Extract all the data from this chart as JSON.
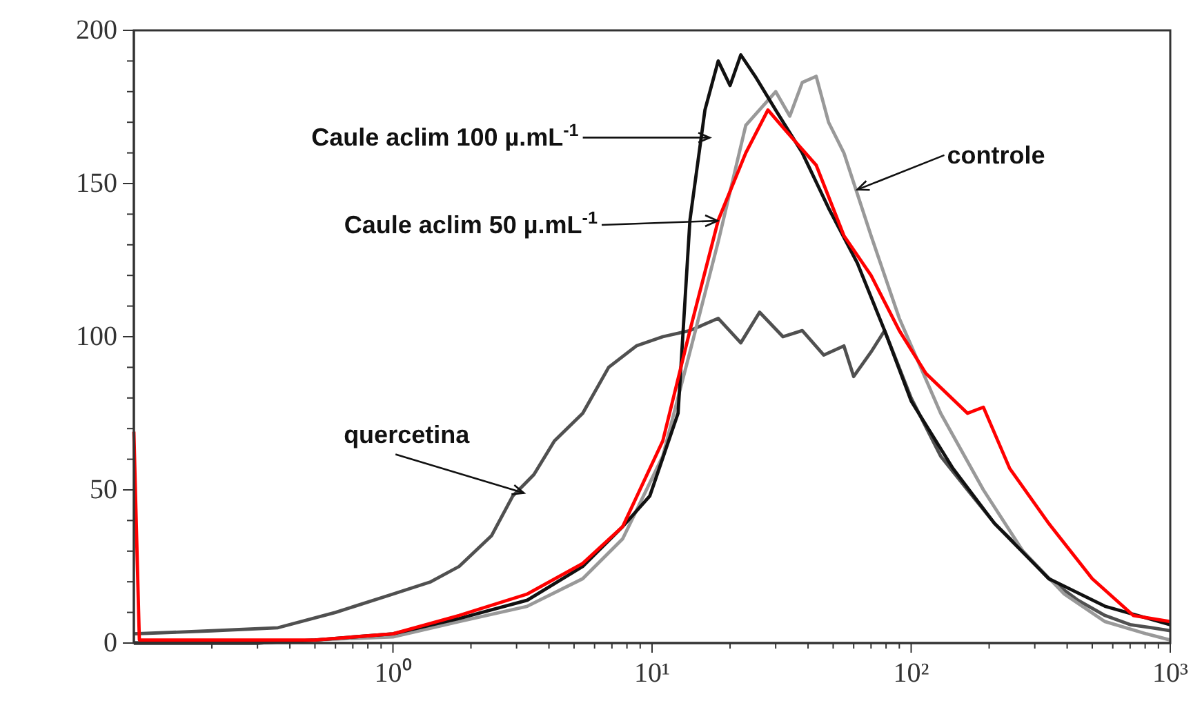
{
  "chart_data": {
    "type": "line",
    "log": "x",
    "xlim": [
      0.1,
      1000
    ],
    "xticks": [
      {
        "value": 0.2,
        "label": null
      },
      {
        "value": 0.3,
        "label": null
      },
      {
        "value": 0.4,
        "label": null
      },
      {
        "value": 0.5,
        "label": null
      },
      {
        "value": 0.6,
        "label": null
      },
      {
        "value": 0.7,
        "label": null
      },
      {
        "value": 0.8,
        "label": null
      },
      {
        "value": 0.9,
        "label": null
      },
      {
        "value": 1,
        "label": "10⁰"
      },
      {
        "value": 2,
        "label": null
      },
      {
        "value": 3,
        "label": null
      },
      {
        "value": 4,
        "label": null
      },
      {
        "value": 5,
        "label": null
      },
      {
        "value": 6,
        "label": null
      },
      {
        "value": 7,
        "label": null
      },
      {
        "value": 8,
        "label": null
      },
      {
        "value": 9,
        "label": null
      },
      {
        "value": 10,
        "label": "10¹"
      },
      {
        "value": 20,
        "label": null
      },
      {
        "value": 30,
        "label": null
      },
      {
        "value": 40,
        "label": null
      },
      {
        "value": 50,
        "label": null
      },
      {
        "value": 60,
        "label": null
      },
      {
        "value": 70,
        "label": null
      },
      {
        "value": 80,
        "label": null
      },
      {
        "value": 90,
        "label": null
      },
      {
        "value": 100,
        "label": "10²"
      },
      {
        "value": 200,
        "label": null
      },
      {
        "value": 300,
        "label": null
      },
      {
        "value": 400,
        "label": null
      },
      {
        "value": 500,
        "label": null
      },
      {
        "value": 600,
        "label": null
      },
      {
        "value": 700,
        "label": null
      },
      {
        "value": 800,
        "label": null
      },
      {
        "value": 900,
        "label": null
      },
      {
        "value": 1000,
        "label": "10³"
      }
    ],
    "ylim": [
      0,
      200
    ],
    "yticks": [
      0,
      {
        "value": 10,
        "label": null
      },
      {
        "value": 20,
        "label": null
      },
      {
        "value": 30,
        "label": null
      },
      {
        "value": 40,
        "label": null
      },
      50,
      {
        "value": 60,
        "label": null
      },
      {
        "value": 70,
        "label": null
      },
      {
        "value": 80,
        "label": null
      },
      {
        "value": 90,
        "label": null
      },
      100,
      {
        "value": 110,
        "label": null
      },
      {
        "value": 120,
        "label": null
      },
      {
        "value": 130,
        "label": null
      },
      {
        "value": 140,
        "label": null
      },
      150,
      {
        "value": 160,
        "label": null
      },
      {
        "value": 170,
        "label": null
      },
      {
        "value": 180,
        "label": null
      },
      {
        "value": 190,
        "label": null
      },
      200
    ],
    "grid": false,
    "line_style": "solid",
    "marker": "none",
    "annotations": [
      {
        "text": "Caule aclim 100 µ.mL$^{-1}$",
        "x": 16.7,
        "y": 165
      },
      {
        "text": "controle",
        "x": 62,
        "y": 148
      },
      "Caule aclim 50 µ.mL$^{-1}$",
      {
        "text": "quercetina",
        "x": 3.2,
        "y": 49
      }
    ],
    "series": [
      {
        "color": "#505050",
        "x": [
          0.1,
          0.2,
          0.36,
          0.6,
          1,
          1.4,
          1.8,
          2.4,
          2.9,
          3.5,
          4.2,
          5.4,
          6.8,
          8.7,
          11,
          14,
          18,
          22,
          26,
          32,
          38,
          46,
          55,
          60,
          70,
          79,
          100,
          130,
          165,
          210,
          270,
          340,
          440,
          560,
          700,
          850,
          1000
        ],
        "values": [
          3,
          4,
          5,
          10,
          16,
          20,
          25,
          35,
          48,
          55,
          66,
          75,
          90,
          97,
          100,
          102,
          106,
          98,
          108,
          100,
          102,
          94,
          97,
          87,
          95,
          102,
          80,
          61,
          50,
          39,
          30,
          21,
          14,
          9,
          6,
          5,
          4
        ]
      },
      {
        "color": "#999999",
        "x": [
          0.1,
          0.3,
          0.5,
          1,
          1.8,
          3.3,
          5.4,
          7.7,
          11,
          14,
          18,
          23,
          30,
          34,
          38,
          43,
          48,
          55,
          70,
          90,
          130,
          190,
          270,
          390,
          560,
          810,
          1000
        ],
        "values": [
          0,
          0,
          1,
          2,
          7,
          12,
          21,
          34,
          61,
          95,
          131,
          169,
          180,
          172,
          183,
          185,
          170,
          160,
          133,
          106,
          75,
          50,
          30,
          16,
          7,
          3,
          1
        ]
      },
      {
        "color": "#111111",
        "x": [
          0.1,
          0.3,
          0.5,
          1,
          1.8,
          3.3,
          5.4,
          7.7,
          9.8,
          12.6,
          14,
          16,
          18,
          20,
          22,
          25,
          30,
          38,
          48,
          62,
          79,
          100,
          145,
          210,
          340,
          560,
          1000
        ],
        "values": [
          0,
          0,
          1,
          3,
          8,
          14,
          25,
          38,
          48,
          75,
          138,
          174,
          190,
          182,
          192,
          185,
          174,
          160,
          142,
          124,
          102,
          79,
          57,
          39,
          21,
          12,
          6
        ]
      },
      {
        "color": "#ff0000",
        "x": [
          0.1,
          0.105,
          0.2,
          0.5,
          1,
          1.8,
          3.3,
          5.4,
          7.7,
          11,
          14,
          18,
          23,
          28,
          33,
          43,
          55,
          70,
          90,
          114,
          165,
          190,
          240,
          340,
          500,
          720,
          1000
        ],
        "values": [
          69,
          1,
          1,
          1,
          3,
          9,
          16,
          26,
          38,
          66,
          102,
          138,
          160,
          174,
          167,
          156,
          133,
          120,
          102,
          88,
          75,
          77,
          57,
          39,
          21,
          9,
          7
        ]
      }
    ]
  }
}
